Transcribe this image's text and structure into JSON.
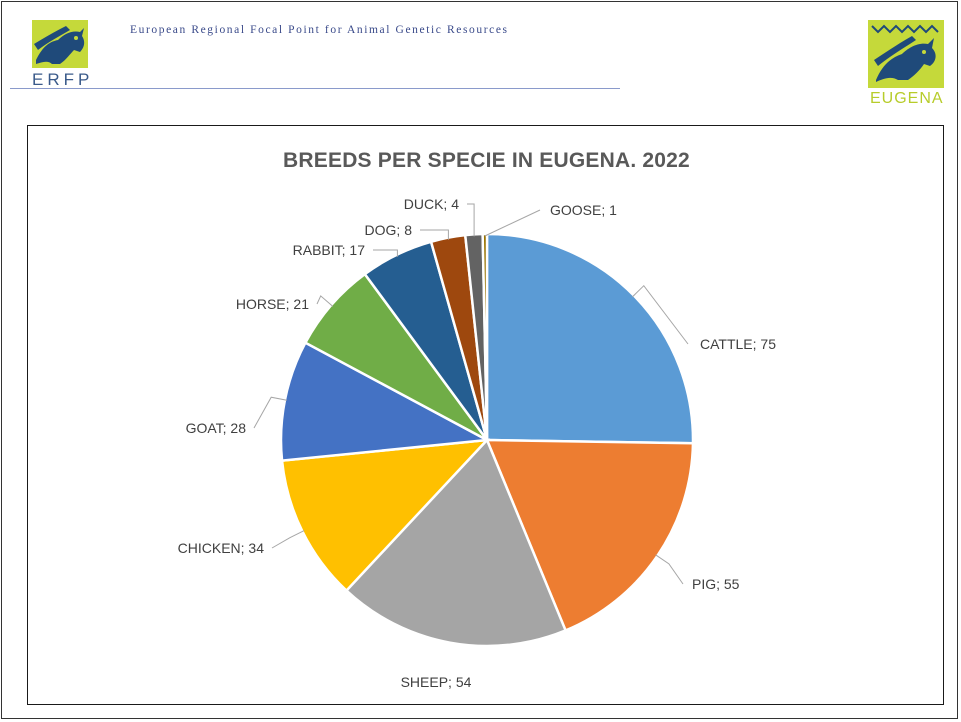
{
  "header": {
    "org_name": "European Regional Focal Point for Animal Genetic Resources",
    "left_logo_text": "ERFP",
    "right_logo_text": "EUGENA"
  },
  "chart_data": {
    "type": "pie",
    "title": "BREEDS PER SPECIE IN EUGENA. 2022",
    "separator": "; ",
    "slices": [
      {
        "name": "CATTLE",
        "value": 75,
        "color": "#5b9bd5"
      },
      {
        "name": "PIG",
        "value": 55,
        "color": "#ed7d31"
      },
      {
        "name": "SHEEP",
        "value": 54,
        "color": "#a5a5a5"
      },
      {
        "name": "CHICKEN",
        "value": 34,
        "color": "#ffc000"
      },
      {
        "name": "GOAT",
        "value": 28,
        "color": "#4472c4"
      },
      {
        "name": "HORSE",
        "value": 21,
        "color": "#70ad47"
      },
      {
        "name": "RABBIT",
        "value": 17,
        "color": "#255e91"
      },
      {
        "name": "DOG",
        "value": 8,
        "color": "#9e480e"
      },
      {
        "name": "DUCK",
        "value": 4,
        "color": "#636363"
      },
      {
        "name": "GOOSE",
        "value": 1,
        "color": "#997300"
      }
    ]
  }
}
